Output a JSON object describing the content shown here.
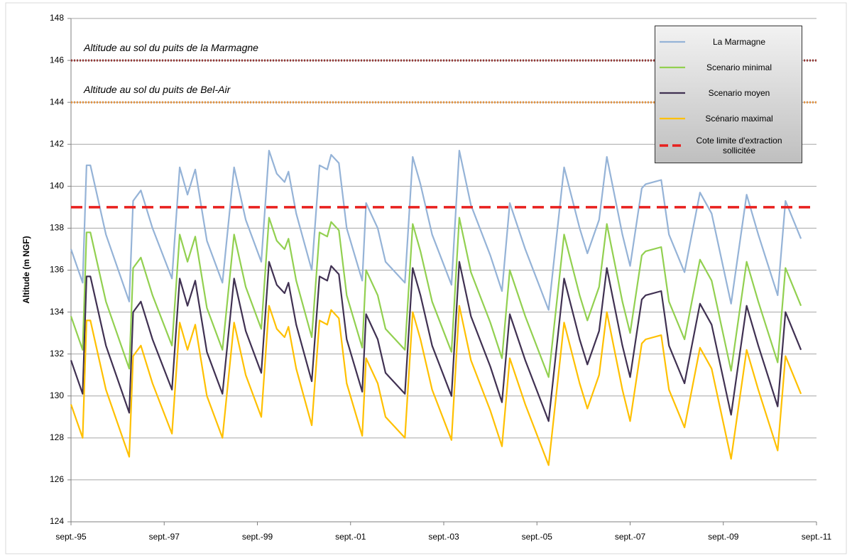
{
  "chart_data": {
    "type": "line",
    "y_label": "Altitude (m NGF)",
    "x": [
      "1995-09",
      "1995-12",
      "1996-01",
      "1996-02",
      "1996-06",
      "1996-12",
      "1997-01",
      "1997-03",
      "1997-06",
      "1997-11",
      "1998-01",
      "1998-03",
      "1998-05",
      "1998-08",
      "1998-12",
      "1999-03",
      "1999-06",
      "1999-10",
      "1999-12",
      "2000-02",
      "2000-04",
      "2000-05",
      "2000-07",
      "2000-11",
      "2001-01",
      "2001-03",
      "2001-04",
      "2001-06",
      "2001-08",
      "2001-12",
      "2002-01",
      "2002-04",
      "2002-06",
      "2002-11",
      "2003-01",
      "2003-03",
      "2003-06",
      "2003-11",
      "2004-01",
      "2004-04",
      "2004-09",
      "2004-12",
      "2005-02",
      "2005-06",
      "2005-12",
      "2006-04",
      "2006-08",
      "2006-10",
      "2007-01",
      "2007-03",
      "2007-07",
      "2007-09",
      "2007-12",
      "2008-01",
      "2008-05",
      "2008-07",
      "2008-11",
      "2009-03",
      "2009-06",
      "2009-11",
      "2010-03",
      "2010-06",
      "2010-11",
      "2011-01",
      "2011-05"
    ],
    "series": [
      {
        "name": "La Marmagne",
        "color": "#95b3d7",
        "values": [
          137.0,
          135.4,
          141.0,
          141.0,
          137.7,
          134.5,
          139.3,
          139.8,
          138.0,
          135.6,
          140.9,
          139.6,
          140.8,
          137.4,
          135.4,
          140.9,
          138.4,
          136.4,
          141.7,
          140.6,
          140.2,
          140.7,
          138.7,
          136.0,
          141.0,
          140.8,
          141.5,
          141.1,
          138.0,
          135.5,
          139.2,
          138.0,
          136.4,
          135.4,
          141.4,
          140.1,
          137.7,
          135.3,
          141.7,
          139.1,
          136.7,
          135.0,
          139.2,
          137.0,
          134.1,
          140.9,
          138.0,
          136.8,
          138.4,
          141.4,
          137.7,
          136.2,
          139.9,
          140.1,
          140.3,
          137.7,
          135.9,
          139.7,
          138.7,
          134.4,
          139.6,
          137.7,
          134.8,
          139.3,
          137.5
        ]
      },
      {
        "name": "Scenario minimal",
        "color": "#92d050",
        "values": [
          133.8,
          132.2,
          137.8,
          137.8,
          134.5,
          131.3,
          136.1,
          136.6,
          134.8,
          132.4,
          137.7,
          136.4,
          137.6,
          134.2,
          132.2,
          137.7,
          135.2,
          133.2,
          138.5,
          137.4,
          137.0,
          137.5,
          135.5,
          132.8,
          137.8,
          137.6,
          138.3,
          137.9,
          134.8,
          132.3,
          136.0,
          134.8,
          133.2,
          132.2,
          138.2,
          136.9,
          134.5,
          132.1,
          138.5,
          135.9,
          133.5,
          131.8,
          136.0,
          133.8,
          130.9,
          137.7,
          134.8,
          133.6,
          135.2,
          138.2,
          134.5,
          133.0,
          136.7,
          136.9,
          137.1,
          134.5,
          132.7,
          136.5,
          135.5,
          131.2,
          136.4,
          134.5,
          131.6,
          136.1,
          134.3
        ]
      },
      {
        "name": "Scenario moyen",
        "color": "#403152",
        "values": [
          131.7,
          130.1,
          135.7,
          135.7,
          132.4,
          129.2,
          134.0,
          134.5,
          132.7,
          130.3,
          135.6,
          134.3,
          135.5,
          132.1,
          130.1,
          135.6,
          133.1,
          131.1,
          136.4,
          135.3,
          134.9,
          135.4,
          133.4,
          130.7,
          135.7,
          135.5,
          136.2,
          135.8,
          132.7,
          130.2,
          133.9,
          132.7,
          131.1,
          130.1,
          136.1,
          134.8,
          132.4,
          130.0,
          136.4,
          133.8,
          131.4,
          129.7,
          133.9,
          131.7,
          128.8,
          135.6,
          132.7,
          131.5,
          133.1,
          136.1,
          132.4,
          130.9,
          134.6,
          134.8,
          135.0,
          132.4,
          130.6,
          134.4,
          133.4,
          129.1,
          134.3,
          132.4,
          129.5,
          134.0,
          132.2
        ]
      },
      {
        "name": "Scénario maximal",
        "color": "#ffc000",
        "values": [
          129.6,
          128.0,
          133.6,
          133.6,
          130.3,
          127.1,
          131.9,
          132.4,
          130.6,
          128.2,
          133.5,
          132.2,
          133.4,
          130.0,
          128.0,
          133.5,
          131.0,
          129.0,
          134.3,
          133.2,
          132.8,
          133.3,
          131.3,
          128.6,
          133.6,
          133.4,
          134.1,
          133.7,
          130.6,
          128.1,
          131.8,
          130.6,
          129.0,
          128.0,
          134.0,
          132.7,
          130.3,
          127.9,
          134.3,
          131.7,
          129.3,
          127.6,
          131.8,
          129.6,
          126.7,
          133.5,
          130.6,
          129.4,
          131.0,
          134.0,
          130.3,
          128.8,
          132.5,
          132.7,
          132.9,
          130.3,
          128.5,
          132.3,
          131.3,
          127.0,
          132.2,
          130.3,
          127.4,
          131.9,
          130.1
        ]
      }
    ],
    "reference_lines": [
      {
        "name": "Cote limite d'extraction sollicitée",
        "value": 139,
        "color": "#e8201e"
      }
    ],
    "annotations": [
      {
        "text": "Altitude au sol du puits de la Marmagne",
        "value": 146,
        "color": "#943634"
      },
      {
        "text": "Altitude au sol du puits de Bel-Air",
        "value": 144,
        "color": "#e3913f"
      }
    ],
    "xlim": [
      "1995-09",
      "2011-09"
    ],
    "xticks": [
      {
        "value": "1995-09",
        "label": "sept.-95"
      },
      {
        "value": "1997-09",
        "label": "sept.-97"
      },
      {
        "value": "1999-09",
        "label": "sept.-99"
      },
      {
        "value": "2001-09",
        "label": "sept.-01"
      },
      {
        "value": "2003-09",
        "label": "sept.-03"
      },
      {
        "value": "2005-09",
        "label": "sept.-05"
      },
      {
        "value": "2007-09",
        "label": "sept.-07"
      },
      {
        "value": "2009-09",
        "label": "sept.-09"
      },
      {
        "value": "2011-09",
        "label": "sept.-11"
      }
    ],
    "ylim": [
      124,
      148
    ],
    "yticks": [
      124,
      126,
      128,
      130,
      132,
      134,
      136,
      138,
      140,
      142,
      144,
      146,
      148
    ],
    "grid": true,
    "legend": "upper right"
  }
}
